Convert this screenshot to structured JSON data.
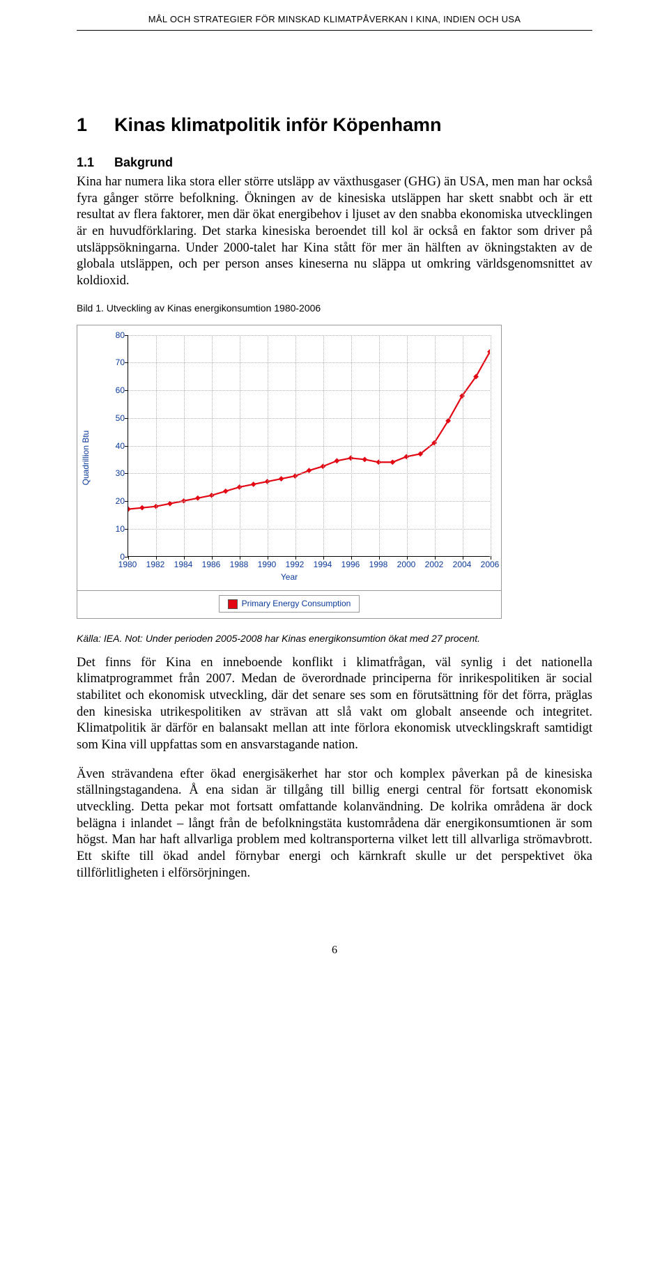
{
  "running_header": "MÅL OCH STRATEGIER FÖR MINSKAD KLIMATPÅVERKAN I KINA, INDIEN OCH USA",
  "heading1": {
    "num": "1",
    "text": "Kinas klimatpolitik inför Köpenhamn"
  },
  "heading2": {
    "num": "1.1",
    "text": "Bakgrund"
  },
  "para1": "Kina har numera lika stora eller större utsläpp av växthusgaser (GHG) än USA, men man har också fyra gånger större befolkning. Ökningen av de kinesiska utsläppen har skett snabbt och är ett resultat av flera faktorer, men där ökat energibehov i ljuset av den snabba ekonomiska utvecklingen är en huvudförklaring. Det starka kinesiska beroendet till kol är också en faktor som driver på utsläppsökningarna. Under 2000-talet har Kina stått för mer än hälften av ökningstakten av de globala utsläppen, och per person anses kineserna nu släppa ut omkring världsgenomsnittet av koldioxid.",
  "figure_caption": "Bild 1. Utveckling av Kinas energikonsumtion 1980-2006",
  "source_note": "Källa: IEA. Not: Under perioden 2005-2008 har Kinas energikonsumtion ökat med 27 procent.",
  "para2": "Det finns för Kina en inneboende konflikt i klimatfrågan, väl synlig i det nationella klimatprogrammet från 2007. Medan de överordnade principerna för inrikespolitiken är social stabilitet och ekonomisk utveckling, där det senare ses som en förutsättning för det förra, präglas den kinesiska utrikespolitiken av strävan att slå vakt om globalt anseende och integritet. Klimatpolitik är därför en balansakt mellan att inte förlora ekonomisk utvecklingskraft samtidigt som Kina vill uppfattas som en ansvarstagande nation.",
  "para3": "Även strävandena efter ökad energisäkerhet har stor och komplex påverkan på de kinesiska ställningstagandena. Å ena sidan är tillgång till billig energi central för fortsatt ekonomisk utveckling. Detta pekar mot fortsatt omfattande kolanvändning. De kolrika områdena är dock belägna i inlandet – långt från de befolkningstäta kustområdena där energikonsumtionen är som högst. Man har haft allvarliga problem med koltransporterna vilket lett till allvarliga strömavbrott. Ett skifte till ökad andel förnybar energi och kärnkraft skulle ur det perspektivet öka tillförlitligheten i elförsörjningen.",
  "page_number": "6",
  "chart": {
    "type": "line",
    "ylabel": "Quadrillion Btu",
    "xlabel": "Year",
    "legend_label": "Primary Energy Consumption",
    "series_color": "#e30613",
    "marker_color": "#e30613",
    "axis_label_color": "#0a3a9a",
    "grid_color": "#b0b0b0",
    "background_color": "#ffffff",
    "line_width": 2.2,
    "marker_size": 3.2,
    "xlim": [
      1980,
      2006
    ],
    "ylim": [
      0,
      80
    ],
    "ytick_step": 10,
    "xtick_step": 2,
    "x": [
      1980,
      1981,
      1982,
      1983,
      1984,
      1985,
      1986,
      1987,
      1988,
      1989,
      1990,
      1991,
      1992,
      1993,
      1994,
      1995,
      1996,
      1997,
      1998,
      1999,
      2000,
      2001,
      2002,
      2003,
      2004,
      2005,
      2006
    ],
    "y": [
      17,
      17.5,
      18,
      19,
      20,
      21,
      22,
      23.5,
      25,
      26,
      27,
      28,
      29,
      31,
      32.5,
      34.5,
      35.5,
      35,
      34,
      34,
      36,
      37,
      41,
      49,
      58,
      65,
      74
    ]
  }
}
